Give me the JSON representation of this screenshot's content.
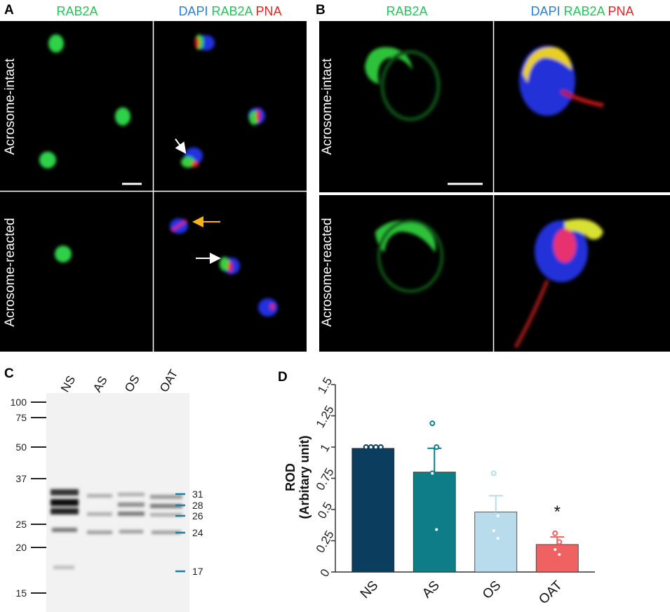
{
  "panel_a": {
    "label": "A",
    "col1": "RAB2A",
    "col2": [
      "DAPI",
      "RAB2A",
      "PNA"
    ],
    "rows": [
      "Acrosome-intact",
      "Acrosome-reacted"
    ]
  },
  "panel_b": {
    "label": "B",
    "col1": "RAB2A",
    "col2": [
      "DAPI",
      "RAB2A",
      "PNA"
    ],
    "rows": [
      "Acrosome-intact",
      "Acrosome-reacted"
    ]
  },
  "panel_c": {
    "label": "C",
    "lanes": [
      "NS",
      "AS",
      "OS",
      "OAT"
    ],
    "markers_left": [
      100,
      75,
      50,
      37,
      25,
      20,
      15
    ],
    "markers_right": [
      31,
      28,
      26,
      24,
      17
    ]
  },
  "chart_data": {
    "type": "bar",
    "label": "D",
    "y_label": [
      "ROD",
      "(Arbitary unit)"
    ],
    "categories": [
      "NS",
      "AS",
      "OS",
      "OAT"
    ],
    "values": [
      0.99,
      0.8,
      0.48,
      0.22
    ],
    "errors": [
      0,
      0.19,
      0.13,
      0.06
    ],
    "points": [
      [
        1.0,
        1.0,
        1.0,
        1.0
      ],
      [
        1.19,
        1.0,
        0.79,
        0.34
      ],
      [
        0.79,
        0.45,
        0.33,
        0.27
      ],
      [
        0.31,
        0.24,
        0.18,
        0.14
      ]
    ],
    "colors": [
      "#0b3d5e",
      "#0e7d87",
      "#b9dcec",
      "#f06262"
    ],
    "annotation": "*",
    "ylim": [
      0,
      1.5
    ],
    "yticks": [
      0,
      0.25,
      0.5,
      0.75,
      1,
      1.25,
      1.5
    ]
  }
}
